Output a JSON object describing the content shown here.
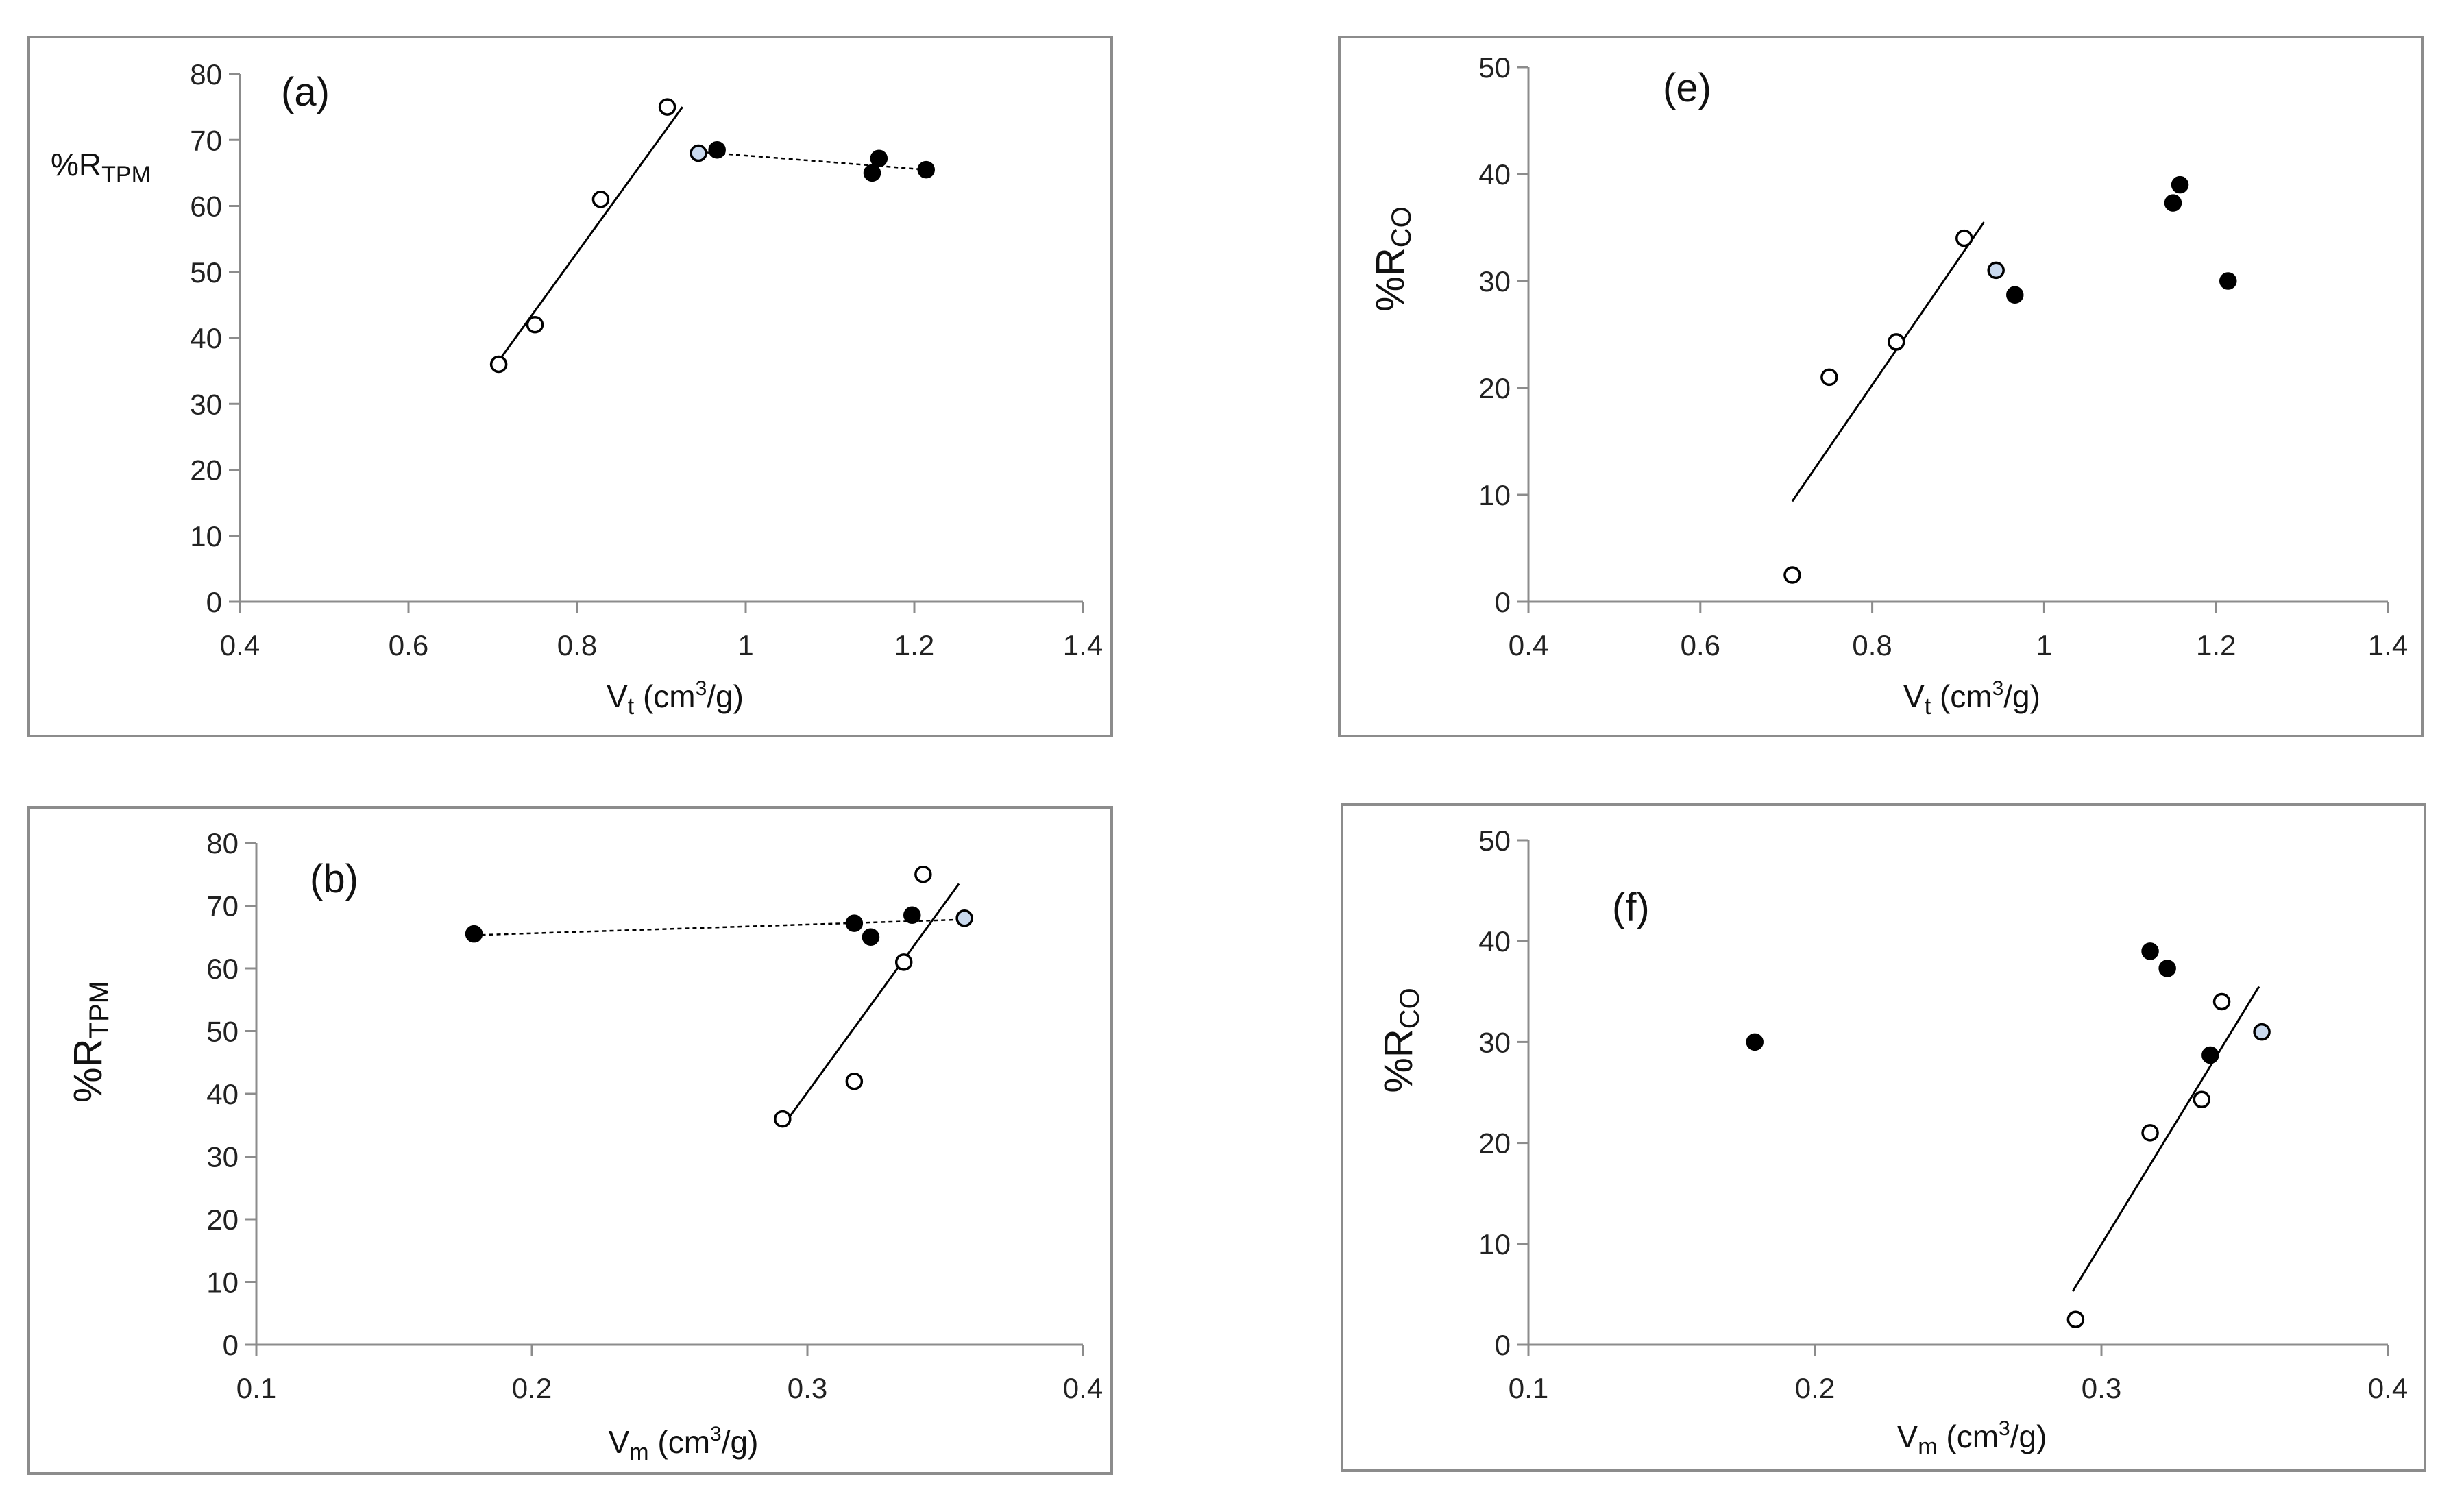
{
  "chart_data": [
    {
      "id": "a",
      "type": "scatter",
      "panel_label": "(a)",
      "xlabel": {
        "main": "V",
        "sub": "t",
        "rest": " (cm",
        "sup": "3",
        "tail": "/g)"
      },
      "ylabel": {
        "main": "%R",
        "sub": "TPM"
      },
      "xlim": [
        0.4,
        1.4
      ],
      "xticks": [
        0.4,
        0.6,
        0.8,
        1,
        1.2,
        1.4
      ],
      "ylim": [
        0,
        80
      ],
      "yticks": [
        0,
        10,
        20,
        30,
        40,
        50,
        60,
        70,
        80
      ],
      "series": [
        {
          "name": "open",
          "style": "open",
          "points": [
            [
              0.707,
              36
            ],
            [
              0.75,
              42
            ],
            [
              0.828,
              61
            ],
            [
              0.907,
              75
            ]
          ]
        },
        {
          "name": "filled",
          "style": "filled",
          "points": [
            [
              0.966,
              68.5
            ],
            [
              1.15,
              65
            ],
            [
              1.158,
              67.2
            ],
            [
              1.214,
              65.5
            ]
          ]
        },
        {
          "name": "blue",
          "style": "blue",
          "points": [
            [
              0.944,
              68
            ]
          ]
        }
      ],
      "lines": [
        {
          "style": "solid",
          "from": [
            0.707,
            36.5
          ],
          "to": [
            0.925,
            75
          ]
        },
        {
          "style": "dashed",
          "from": [
            0.944,
            68.2
          ],
          "to": [
            1.214,
            65.5
          ]
        }
      ]
    },
    {
      "id": "e",
      "type": "scatter",
      "panel_label": "(e)",
      "xlabel": {
        "main": "V",
        "sub": "t",
        "rest": " (cm",
        "sup": "3",
        "tail": "/g)"
      },
      "ylabel": {
        "main": "%R",
        "sub": "CO"
      },
      "xlim": [
        0.4,
        1.4
      ],
      "xticks": [
        0.4,
        0.6,
        0.8,
        1,
        1.2,
        1.4
      ],
      "ylim": [
        0,
        50
      ],
      "yticks": [
        0,
        10,
        20,
        30,
        40,
        50
      ],
      "series": [
        {
          "name": "open",
          "style": "open",
          "points": [
            [
              0.707,
              2.5
            ],
            [
              0.75,
              21
            ],
            [
              0.828,
              24.3
            ],
            [
              0.907,
              34
            ]
          ]
        },
        {
          "name": "filled",
          "style": "filled",
          "points": [
            [
              0.966,
              28.7
            ],
            [
              1.15,
              37.3
            ],
            [
              1.158,
              39
            ],
            [
              1.214,
              30
            ]
          ]
        },
        {
          "name": "blue",
          "style": "blue",
          "points": [
            [
              0.944,
              31
            ]
          ]
        }
      ],
      "lines": [
        {
          "style": "solid",
          "from": [
            0.707,
            9.4
          ],
          "to": [
            0.93,
            35.5
          ]
        }
      ]
    },
    {
      "id": "b",
      "type": "scatter",
      "panel_label": "(b)",
      "xlabel": {
        "main": "V",
        "sub": "m",
        "rest": " (cm",
        "sup": "3",
        "tail": "/g)"
      },
      "ylabel": {
        "main": "%R",
        "sub": "TPM"
      },
      "xlim": [
        0.1,
        0.4
      ],
      "xticks": [
        0.1,
        0.2,
        0.3,
        0.4
      ],
      "ylim": [
        0,
        80
      ],
      "yticks": [
        0,
        10,
        20,
        30,
        40,
        50,
        60,
        70,
        80
      ],
      "series": [
        {
          "name": "open",
          "style": "open",
          "points": [
            [
              0.291,
              36
            ],
            [
              0.317,
              42
            ],
            [
              0.335,
              61
            ],
            [
              0.342,
              75
            ]
          ]
        },
        {
          "name": "filled",
          "style": "filled",
          "points": [
            [
              0.179,
              65.5
            ],
            [
              0.317,
              67.2
            ],
            [
              0.323,
              65
            ],
            [
              0.338,
              68.5
            ]
          ]
        },
        {
          "name": "blue",
          "style": "blue",
          "points": [
            [
              0.357,
              68
            ]
          ]
        }
      ],
      "lines": [
        {
          "style": "solid",
          "from": [
            0.291,
            34.8
          ],
          "to": [
            0.355,
            73.5
          ]
        },
        {
          "style": "dashed",
          "from": [
            0.179,
            65.3
          ],
          "to": [
            0.357,
            67.8
          ]
        }
      ]
    },
    {
      "id": "f",
      "type": "scatter",
      "panel_label": "(f)",
      "xlabel": {
        "main": "V",
        "sub": "m",
        "rest": " (cm",
        "sup": "3",
        "tail": "/g)"
      },
      "ylabel": {
        "main": "%R",
        "sub": "CO"
      },
      "xlim": [
        0.1,
        0.4
      ],
      "xticks": [
        0.1,
        0.2,
        0.3,
        0.4
      ],
      "ylim": [
        0,
        50
      ],
      "yticks": [
        0,
        10,
        20,
        30,
        40,
        50
      ],
      "series": [
        {
          "name": "open",
          "style": "open",
          "points": [
            [
              0.291,
              2.5
            ],
            [
              0.317,
              21
            ],
            [
              0.335,
              24.3
            ],
            [
              0.342,
              34
            ]
          ]
        },
        {
          "name": "filled",
          "style": "filled",
          "points": [
            [
              0.179,
              30
            ],
            [
              0.317,
              39
            ],
            [
              0.323,
              37.3
            ],
            [
              0.338,
              28.7
            ]
          ]
        },
        {
          "name": "blue",
          "style": "blue",
          "points": [
            [
              0.356,
              31
            ]
          ]
        }
      ],
      "lines": [
        {
          "style": "solid",
          "from": [
            0.29,
            5.3
          ],
          "to": [
            0.355,
            35.5
          ]
        }
      ]
    }
  ],
  "colors": {
    "open_fill": "#ffffff",
    "filled": "#000000",
    "blue_fill": "#c9d9ee",
    "axis": "#8c8c8c",
    "frame": "#8c8c8c"
  }
}
